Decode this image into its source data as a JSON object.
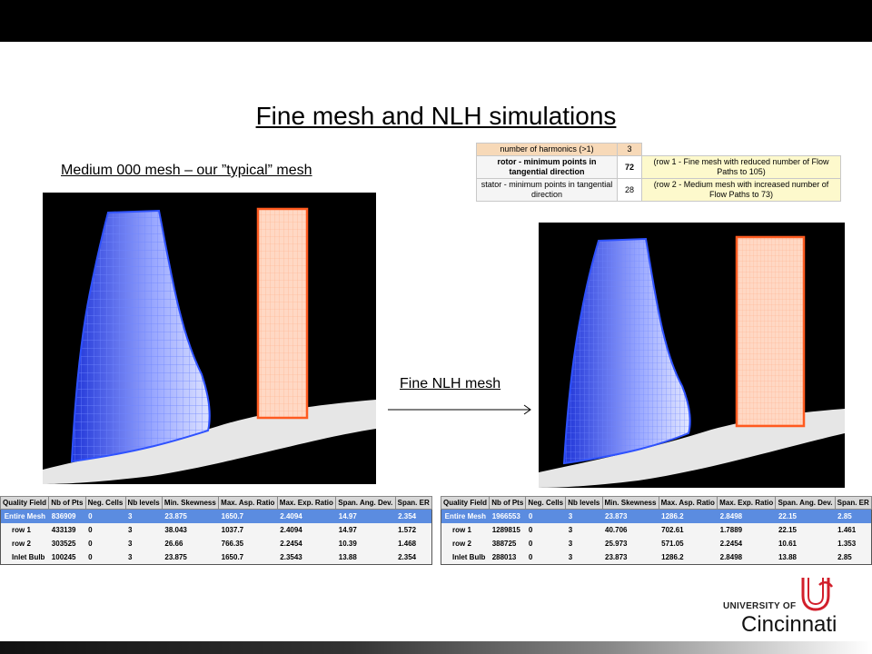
{
  "slide": {
    "title": "Fine mesh and NLH simulations",
    "subtitle": "Medium 000 mesh – our ”typical” mesh",
    "arrow_label": "Fine NLH mesh"
  },
  "params_table": {
    "rows": [
      {
        "name": "number of harmonics (>1)",
        "value": "3",
        "note": ""
      },
      {
        "name": "rotor - minimum points in tangential direction",
        "value": "72",
        "note": "(row 1 - Fine mesh with reduced number of Flow Paths to 105)"
      },
      {
        "name": "stator - minimum points in tangential direction",
        "value": "28",
        "note": "(row 2 - Medium mesh with increased number of Flow Paths to 73)"
      }
    ]
  },
  "quality_table_1": {
    "headers": [
      "Quality Field",
      "Nb of Pts",
      "Neg. Cells",
      "Nb levels",
      "Min. Skewness",
      "Max. Asp. Ratio",
      "Max. Exp. Ratio",
      "Span. Ang. Dev.",
      "Span. ER"
    ],
    "rows": [
      [
        "Entire Mesh",
        "836909",
        "0",
        "3",
        "23.875",
        "1650.7",
        "2.4094",
        "14.97",
        "2.354"
      ],
      [
        "row 1",
        "433139",
        "0",
        "3",
        "38.043",
        "1037.7",
        "2.4094",
        "14.97",
        "1.572"
      ],
      [
        "row 2",
        "303525",
        "0",
        "3",
        "26.66",
        "766.35",
        "2.2454",
        "10.39",
        "1.468"
      ],
      [
        "Inlet Bulb",
        "100245",
        "0",
        "3",
        "23.875",
        "1650.7",
        "2.3543",
        "13.88",
        "2.354"
      ]
    ]
  },
  "quality_table_2": {
    "headers": [
      "Quality Field",
      "Nb of Pts",
      "Neg. Cells",
      "Nb levels",
      "Min. Skewness",
      "Max. Asp. Ratio",
      "Max. Exp. Ratio",
      "Span. Ang. Dev.",
      "Span. ER"
    ],
    "rows": [
      [
        "Entire Mesh",
        "1966553",
        "0",
        "3",
        "23.873",
        "1286.2",
        "2.8498",
        "22.15",
        "2.85"
      ],
      [
        "row 1",
        "1289815",
        "0",
        "3",
        "40.706",
        "702.61",
        "1.7889",
        "22.15",
        "1.461"
      ],
      [
        "row 2",
        "388725",
        "0",
        "3",
        "25.973",
        "571.05",
        "2.2454",
        "10.61",
        "1.353"
      ],
      [
        "Inlet Bulb",
        "288013",
        "0",
        "3",
        "23.873",
        "1286.2",
        "2.8498",
        "13.88",
        "2.85"
      ]
    ]
  },
  "logo": {
    "line1": "UNIVERSITY OF",
    "line2": "Cincinnati"
  },
  "colors": {
    "rotor_mesh": "#2f52ff",
    "stator_mesh": "#ff5a1f",
    "selected_row": "#5b8ce0",
    "logo_red": "#d21f2b"
  }
}
